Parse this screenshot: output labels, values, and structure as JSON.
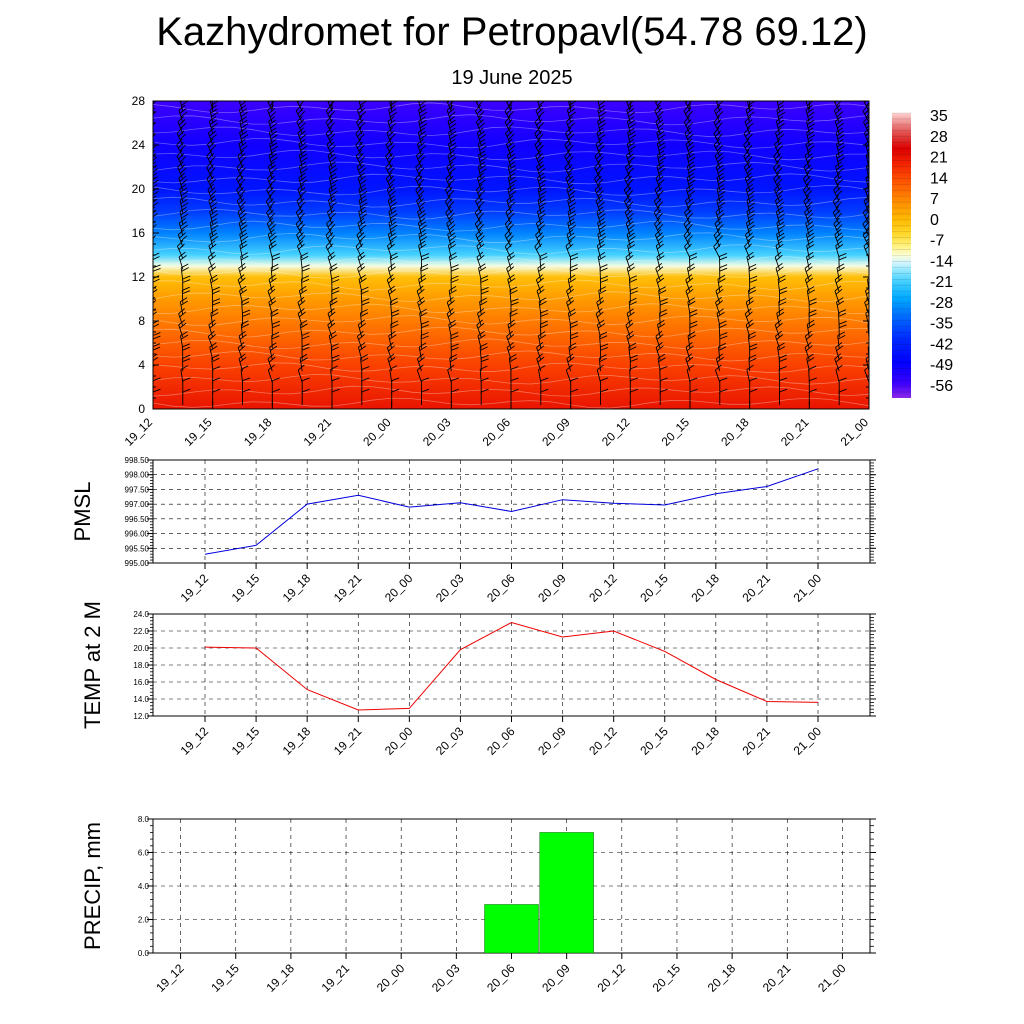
{
  "header": {
    "title": "Kazhydromet for Petropavl(54.78 69.12)",
    "subtitle": "19 June 2025"
  },
  "colors": {
    "pmsl_line": "#0000dd",
    "temp_line": "#ee0000",
    "precip_bar": "#00ff00",
    "grid": "#000000"
  },
  "chart_data": [
    {
      "type": "heatmap",
      "title": "",
      "x": [
        "19_12",
        "19_15",
        "19_18",
        "19_21",
        "20_00",
        "20_03",
        "20_06",
        "20_09",
        "20_12",
        "20_15",
        "20_18",
        "20_21",
        "21_00"
      ],
      "y_ticks": [
        0,
        4,
        8,
        12,
        16,
        20,
        24,
        28
      ],
      "ylim": [
        0,
        28
      ],
      "colorbar": {
        "labels": [
          "35",
          "28",
          "21",
          "14",
          "7",
          "0",
          "-7",
          "-14",
          "-21",
          "-28",
          "-35",
          "-42",
          "-49",
          "-56"
        ],
        "range": [
          -60,
          37
        ]
      },
      "overlay": "wind barbs",
      "temperature_by_level": [
        {
          "y": 0,
          "value": 22
        },
        {
          "y": 4,
          "value": 16
        },
        {
          "y": 8,
          "value": 9
        },
        {
          "y": 10,
          "value": 5
        },
        {
          "y": 12,
          "value": 0
        },
        {
          "y": 13,
          "value": -12
        },
        {
          "y": 14,
          "value": -20
        },
        {
          "y": 16,
          "value": -30
        },
        {
          "y": 18,
          "value": -38
        },
        {
          "y": 20,
          "value": -44
        },
        {
          "y": 24,
          "value": -50
        },
        {
          "y": 28,
          "value": -55
        }
      ]
    },
    {
      "type": "line",
      "ylabel": "PMSL",
      "categories": [
        "19_12",
        "19_15",
        "19_18",
        "19_21",
        "20_00",
        "20_03",
        "20_06",
        "20_09",
        "20_12",
        "20_15",
        "20_18",
        "20_21",
        "21_00"
      ],
      "y_ticks": [
        "995.00",
        "995.50",
        "996.00",
        "996.50",
        "997.00",
        "997.50",
        "998.00",
        "998.50"
      ],
      "ylim": [
        995.0,
        998.5
      ],
      "values": [
        995.3,
        995.6,
        997.0,
        997.3,
        996.9,
        997.05,
        996.75,
        997.15,
        997.03,
        996.97,
        997.35,
        997.6,
        998.2
      ]
    },
    {
      "type": "line",
      "ylabel": "TEMP at 2 M",
      "categories": [
        "19_12",
        "19_15",
        "19_18",
        "19_21",
        "20_00",
        "20_03",
        "20_06",
        "20_09",
        "20_12",
        "20_15",
        "20_18",
        "20_21",
        "21_00"
      ],
      "y_ticks": [
        "12.0",
        "14.0",
        "16.0",
        "18.0",
        "20.0",
        "22.0",
        "24.0"
      ],
      "ylim": [
        12.0,
        24.0
      ],
      "values": [
        20.1,
        20.0,
        15.1,
        12.7,
        12.9,
        19.8,
        23.0,
        21.3,
        22.0,
        19.6,
        16.3,
        13.7,
        13.6
      ]
    },
    {
      "type": "bar",
      "ylabel": "PRECIP, mm",
      "categories": [
        "19_12",
        "19_15",
        "19_18",
        "19_21",
        "20_00",
        "20_03",
        "20_06",
        "20_09",
        "20_12",
        "20_15",
        "20_18",
        "20_21",
        "21_00"
      ],
      "y_ticks": [
        "0.0",
        "2.0",
        "4.0",
        "6.0",
        "8.0"
      ],
      "ylim": [
        0.0,
        8.0
      ],
      "values": [
        0,
        0,
        0,
        0,
        0,
        0,
        2.9,
        7.2,
        0,
        0,
        0,
        0,
        0
      ]
    }
  ]
}
